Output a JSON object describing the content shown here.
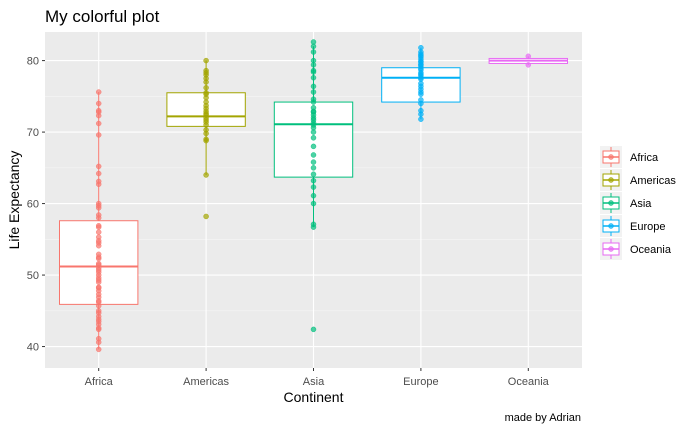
{
  "chart_data": {
    "type": "box",
    "title": "My colorful plot",
    "xlabel": "Continent",
    "ylabel": "Life Expectancy",
    "caption": "made by Adrian",
    "ylim": [
      37,
      84
    ],
    "yticks": [
      40,
      50,
      60,
      70,
      80
    ],
    "grid": true,
    "legend_position": "right",
    "categories": [
      "Africa",
      "Americas",
      "Asia",
      "Europe",
      "Oceania"
    ],
    "series": [
      {
        "name": "Africa",
        "color": "#F8766D",
        "box": {
          "q1": 45.9,
          "median": 51.2,
          "q3": 57.6,
          "whisker_low": 39.6,
          "whisker_high": 75.6
        },
        "points": [
          39.6,
          40.6,
          41.1,
          42.4,
          42.6,
          43.1,
          43.5,
          43.8,
          44.2,
          44.7,
          45.0,
          45.7,
          46.2,
          46.4,
          46.9,
          47.3,
          47.8,
          48.2,
          48.3,
          49.0,
          49.3,
          49.6,
          50.0,
          50.4,
          50.7,
          51.0,
          51.4,
          51.6,
          52.3,
          52.5,
          52.9,
          54.1,
          54.5,
          54.8,
          55.3,
          56.0,
          56.7,
          56.9,
          58.0,
          58.4,
          59.4,
          59.7,
          60.0,
          62.7,
          63.1,
          64.2,
          65.2,
          69.6,
          71.2,
          72.3,
          72.8,
          73.0,
          74.0,
          75.6
        ]
      },
      {
        "name": "Americas",
        "color": "#A3A500",
        "box": {
          "q1": 70.8,
          "median": 72.2,
          "q3": 75.5,
          "whisker_low": 64.0,
          "whisker_high": 80.0
        },
        "points": [
          58.2,
          64.0,
          68.8,
          69.0,
          69.8,
          70.3,
          71.0,
          71.4,
          71.7,
          72.0,
          72.4,
          72.6,
          72.9,
          73.3,
          73.7,
          74.2,
          74.8,
          75.3,
          75.5,
          76.2,
          77.0,
          77.5,
          78.0,
          78.3,
          78.6,
          80.0
        ]
      },
      {
        "name": "Asia",
        "color": "#00BF7D",
        "box": {
          "q1": 63.7,
          "median": 71.1,
          "q3": 74.2,
          "whisker_low": 56.7,
          "whisker_high": 82.0
        },
        "points": [
          42.4,
          56.7,
          57.1,
          60.0,
          61.1,
          62.3,
          63.2,
          64.1,
          65.0,
          65.8,
          66.8,
          68.0,
          69.2,
          70.0,
          70.6,
          71.0,
          71.3,
          71.7,
          72.0,
          72.4,
          72.8,
          72.9,
          73.4,
          74.2,
          74.6,
          75.6,
          76.4,
          77.6,
          78.4,
          78.6,
          79.4,
          80.0,
          81.2,
          82.0,
          82.6
        ]
      },
      {
        "name": "Europe",
        "color": "#00B0F6",
        "box": {
          "q1": 74.2,
          "median": 77.6,
          "q3": 79.0,
          "whisker_low": 71.8,
          "whisker_high": 81.8
        },
        "points": [
          71.8,
          72.5,
          73.0,
          74.0,
          74.5,
          75.3,
          75.6,
          76.0,
          76.4,
          76.8,
          77.4,
          77.6,
          77.9,
          78.1,
          78.3,
          78.7,
          78.9,
          79.2,
          79.4,
          79.5,
          79.8,
          79.9,
          80.2,
          80.5,
          80.7,
          80.9,
          81.2,
          81.8
        ]
      },
      {
        "name": "Oceania",
        "color": "#E76BF3",
        "box": {
          "q1": 79.6,
          "median": 80.0,
          "q3": 80.3,
          "whisker_low": 79.4,
          "whisker_high": 80.6
        },
        "points": [
          79.4,
          80.6
        ]
      }
    ]
  }
}
